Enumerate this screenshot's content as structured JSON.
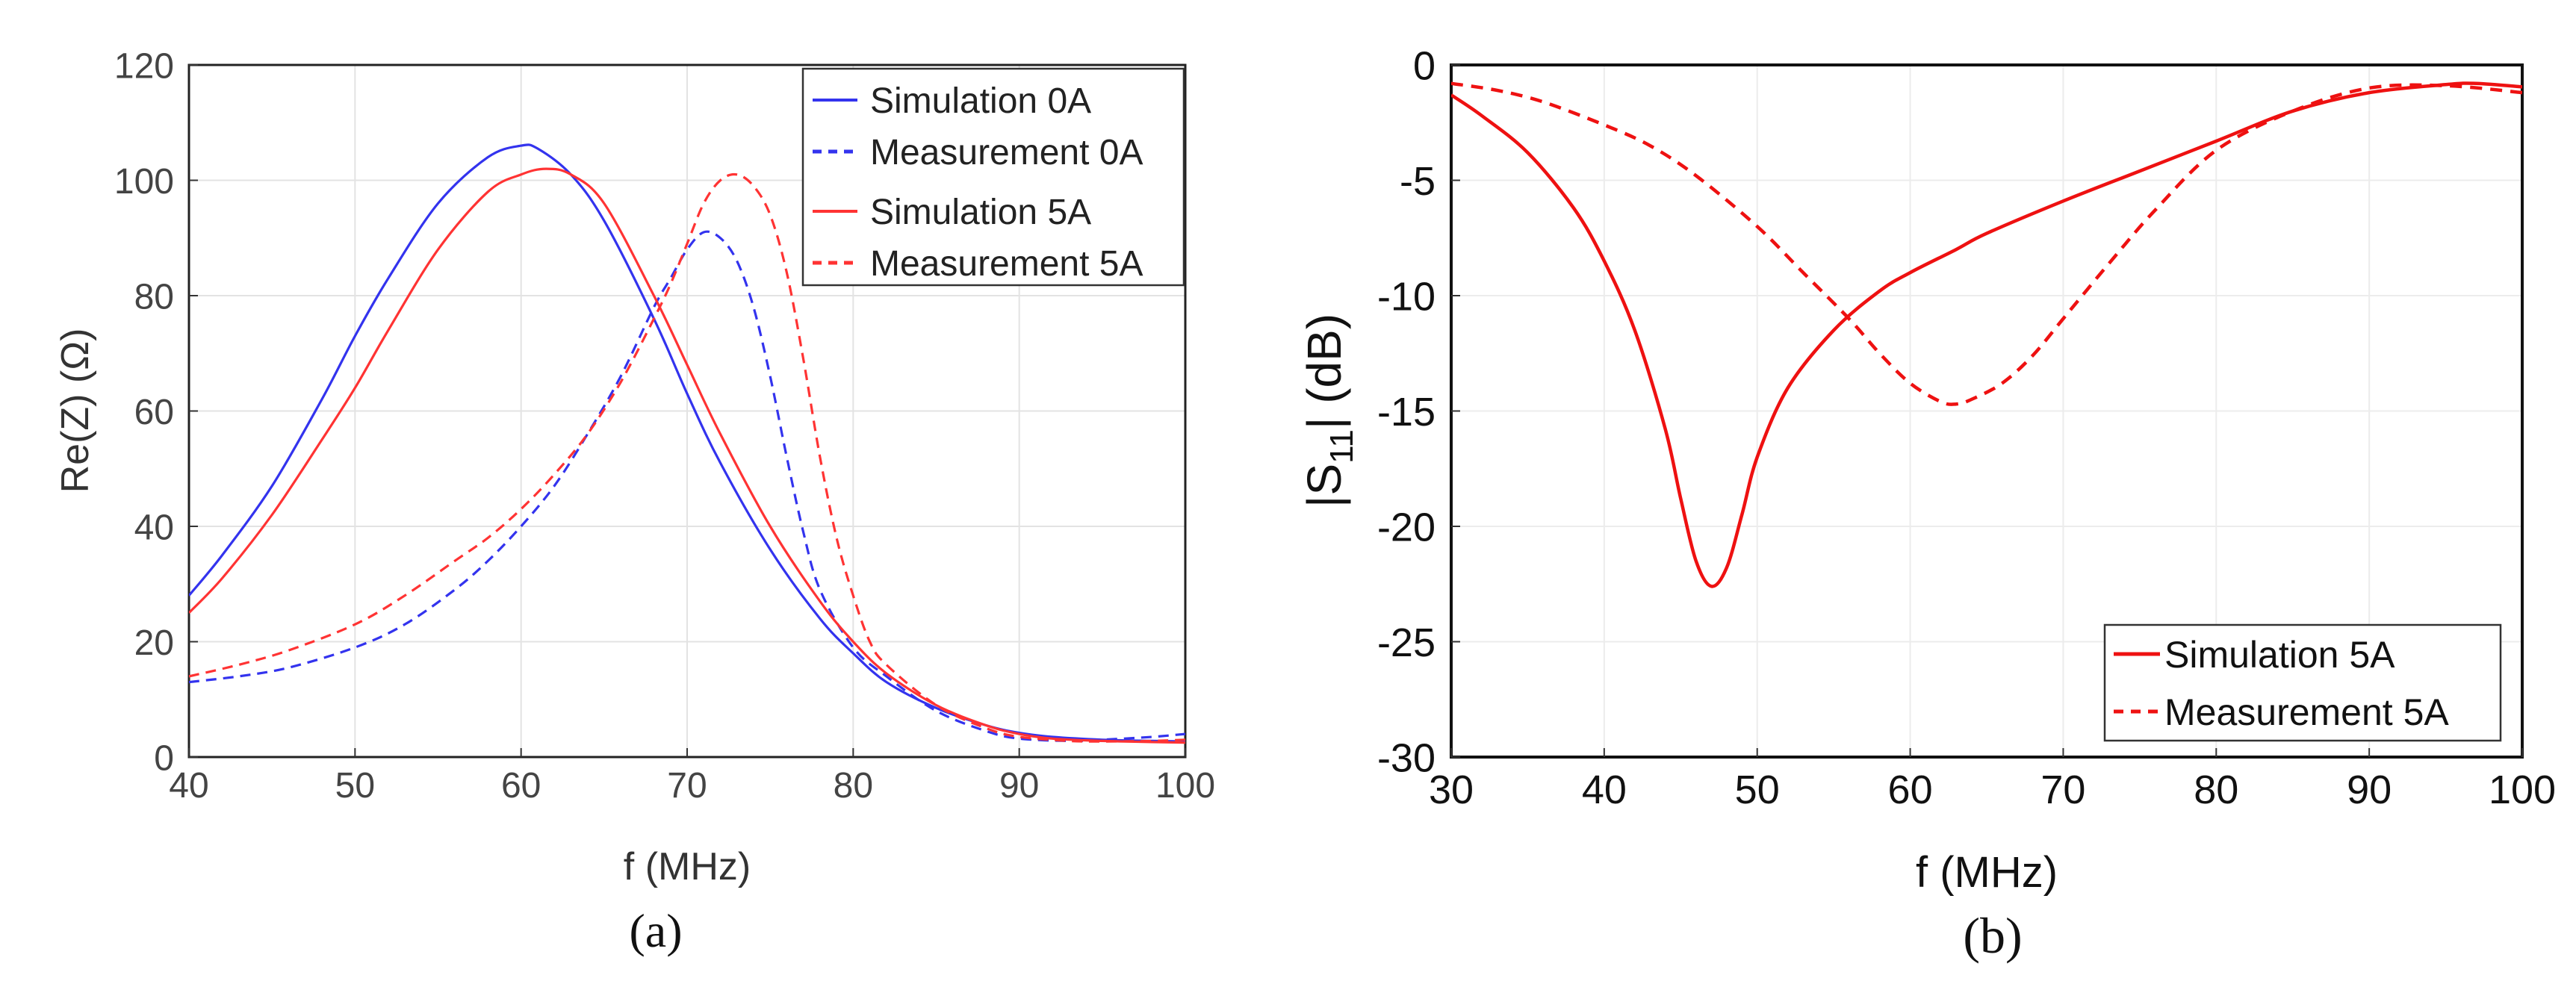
{
  "chart_data": [
    {
      "type": "line",
      "panel_label": "(a)",
      "xlabel": "f (MHz)",
      "ylabel": "Re(Z) (Ω)",
      "xlim": [
        40,
        100
      ],
      "ylim": [
        0,
        120
      ],
      "xticks": [
        40,
        50,
        60,
        70,
        80,
        90,
        100
      ],
      "yticks": [
        0,
        20,
        40,
        60,
        80,
        100,
        120
      ],
      "grid": true,
      "legend_position": "top-right",
      "series": [
        {
          "name": "Simulation 0A",
          "color": "#3333ee",
          "dash": "solid",
          "x": [
            40,
            42,
            45,
            48,
            50,
            52,
            55,
            58,
            60,
            61,
            63,
            65,
            68,
            70,
            72,
            75,
            78,
            80,
            82,
            85,
            88,
            90,
            92,
            95,
            98,
            100
          ],
          "y": [
            28,
            35,
            47,
            62,
            73,
            83,
            96,
            104,
            106,
            105.5,
            101,
            93,
            76,
            63,
            51,
            36,
            24,
            18,
            13,
            8.5,
            5.5,
            4.2,
            3.5,
            3,
            2.8,
            2.7
          ]
        },
        {
          "name": "Measurement 0A",
          "color": "#3333ee",
          "dash": "dashed",
          "x": [
            40,
            43,
            46,
            50,
            53,
            56,
            58,
            60,
            62,
            64,
            66,
            68,
            69,
            70,
            71,
            72,
            73,
            74,
            75,
            76,
            77,
            78,
            80,
            82,
            85,
            88,
            90,
            93,
            95,
            98,
            100
          ],
          "y": [
            13,
            14,
            15.5,
            19,
            23,
            29,
            34,
            40,
            47,
            56,
            66,
            78,
            83,
            88,
            91,
            90,
            86,
            78,
            66,
            52,
            39,
            29,
            19,
            14,
            8,
            4.5,
            3.2,
            2.8,
            3,
            3.5,
            4
          ]
        },
        {
          "name": "Simulation 5A",
          "color": "#ff3333",
          "dash": "solid",
          "x": [
            40,
            42,
            45,
            48,
            50,
            52,
            55,
            58,
            60,
            61.5,
            63,
            65,
            68,
            70,
            72,
            75,
            78,
            80,
            82,
            85,
            88,
            90,
            92,
            95,
            98,
            100
          ],
          "y": [
            25,
            31,
            42,
            55,
            64,
            74,
            88,
            98,
            101,
            102,
            101,
            96,
            80,
            68,
            56,
            40,
            27,
            20,
            14.5,
            9,
            5.5,
            4,
            3.2,
            2.8,
            2.6,
            2.5
          ]
        },
        {
          "name": "Measurement 5A",
          "color": "#ff3333",
          "dash": "dashed",
          "x": [
            40,
            43,
            46,
            50,
            53,
            56,
            58,
            60,
            62,
            64,
            66,
            68,
            69,
            70,
            71,
            72,
            73,
            74,
            75,
            76,
            77,
            78,
            79,
            80,
            81,
            82,
            85,
            88,
            90,
            93,
            95,
            98,
            100
          ],
          "y": [
            14,
            16,
            18.5,
            23,
            28,
            34,
            38,
            43,
            49,
            56,
            65,
            76,
            82,
            89,
            96,
            100,
            101,
            99,
            94,
            84,
            69,
            52,
            38,
            28,
            20,
            16,
            9,
            5,
            3.5,
            2.8,
            2.7,
            2.8,
            3
          ]
        }
      ]
    },
    {
      "type": "line",
      "panel_label": "(b)",
      "xlabel": "f (MHz)",
      "ylabel_main": "|S",
      "ylabel_sub": "11",
      "ylabel_tail": "| (dB)",
      "xlim": [
        30,
        100
      ],
      "ylim": [
        -30,
        0
      ],
      "xticks": [
        30,
        40,
        50,
        60,
        70,
        80,
        90,
        100
      ],
      "yticks": [
        0,
        -5,
        -10,
        -15,
        -20,
        -25,
        -30
      ],
      "grid": true,
      "legend_position": "bottom-right",
      "series": [
        {
          "name": "Simulation 5A",
          "color": "#ee1111",
          "dash": "solid",
          "x": [
            30,
            32,
            35,
            38,
            40,
            42,
            44,
            45,
            46,
            47,
            48,
            49,
            50,
            52,
            55,
            58,
            60,
            63,
            65,
            70,
            75,
            80,
            85,
            90,
            95,
            97,
            100
          ],
          "y": [
            -1.3,
            -2.2,
            -3.8,
            -6.2,
            -8.5,
            -11.5,
            -15.8,
            -18.8,
            -21.5,
            -22.6,
            -21.8,
            -19.5,
            -17,
            -14,
            -11.5,
            -9.8,
            -9,
            -8,
            -7.3,
            -5.9,
            -4.6,
            -3.3,
            -2,
            -1.2,
            -0.85,
            -0.8,
            -0.95
          ]
        },
        {
          "name": "Measurement 5A",
          "color": "#ee1111",
          "dash": "dashed",
          "x": [
            30,
            33,
            36,
            40,
            43,
            46,
            50,
            53,
            56,
            58,
            60,
            62,
            63,
            64,
            66,
            68,
            70,
            73,
            76,
            80,
            85,
            90,
            95,
            100
          ],
          "y": [
            -0.8,
            -1.1,
            -1.6,
            -2.6,
            -3.5,
            -4.8,
            -7,
            -9,
            -11,
            -12.5,
            -13.8,
            -14.6,
            -14.7,
            -14.5,
            -13.8,
            -12.6,
            -11,
            -8.6,
            -6.3,
            -3.7,
            -2,
            -1,
            -0.9,
            -1.2
          ]
        }
      ]
    }
  ]
}
